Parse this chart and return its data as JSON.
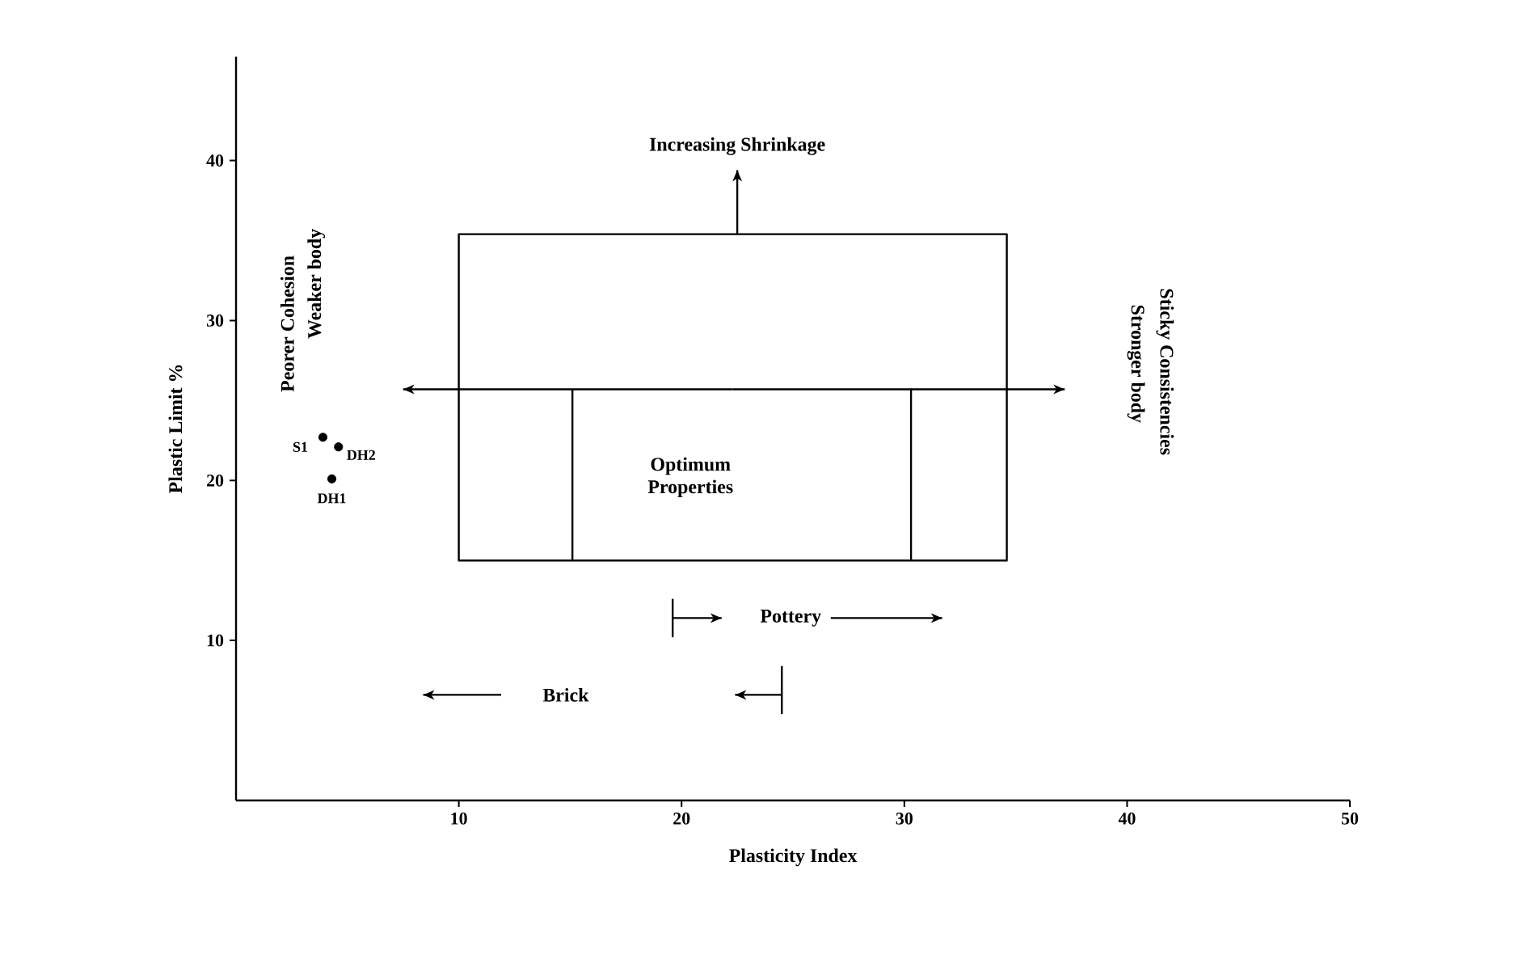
{
  "chart_data": {
    "type": "scatter",
    "xlabel": "Plasticity Index",
    "ylabel": "Plastic Limit %",
    "xlim": [
      0,
      50
    ],
    "ylim": [
      0,
      46.5
    ],
    "xticks": [
      10,
      20,
      30,
      40,
      50
    ],
    "yticks": [
      10,
      20,
      30,
      40
    ],
    "grid": false,
    "series": [
      {
        "type": "scatter",
        "name": "S1",
        "marker": "circle",
        "color": "#000000",
        "x": [
          3.9
        ],
        "values": [
          22.7
        ]
      },
      {
        "type": "scatter",
        "name": "DH1",
        "marker": "circle",
        "color": "#000000",
        "x": [
          4.3
        ],
        "values": [
          20.1
        ]
      },
      {
        "type": "scatter",
        "name": "DH2",
        "marker": "circle",
        "color": "#000000",
        "x": [
          4.6
        ],
        "values": [
          22.1
        ]
      },
      {
        "type": "line",
        "color": "#000000",
        "x": [
          15.1,
          15.1,
          10,
          10,
          34.6,
          34.6,
          30.3,
          30.3,
          30.3,
          15.1
        ],
        "values": [
          25.7,
          15,
          15,
          35.4,
          35.4,
          15,
          15,
          25.7,
          15,
          15
        ]
      },
      {
        "type": "line",
        "color": "#000000",
        "x": [
          22.5,
          22.5
        ],
        "values": [
          35.4,
          39.4
        ]
      },
      {
        "type": "line",
        "color": "#000000",
        "x": [
          22.3,
          37.2
        ],
        "values": [
          25.7,
          25.7
        ]
      },
      {
        "type": "line",
        "color": "#000000",
        "x": [
          22.3,
          7.5
        ],
        "values": [
          25.7,
          25.7
        ]
      },
      {
        "type": "line",
        "color": "#000000",
        "x": [
          19.6,
          19.6,
          19.6
        ],
        "values": [
          12.6,
          11.4,
          10.2
        ]
      },
      {
        "type": "line",
        "color": "#000000",
        "x": [
          19.6,
          21.8
        ],
        "values": [
          11.4,
          11.4
        ]
      },
      {
        "type": "line",
        "color": "#000000",
        "x": [
          26.7,
          31.7
        ],
        "values": [
          11.4,
          11.4
        ]
      },
      {
        "type": "line",
        "color": "#000000",
        "x": [
          11.9,
          8.4
        ],
        "values": [
          6.6,
          6.6
        ]
      },
      {
        "type": "line",
        "color": "#000000",
        "x": [
          24.5,
          24.5,
          24.5
        ],
        "values": [
          8.4,
          6.6,
          5.4
        ]
      },
      {
        "type": "line",
        "color": "#000000",
        "x": [
          24.5,
          22.4
        ],
        "values": [
          6.6,
          6.6
        ]
      }
    ],
    "annotations": [
      "Increasing Shrinkage",
      "Peorer Cohesion",
      "Weaker body",
      "Sticky Consistencies",
      "Stronger body",
      "Optimum Properties",
      "Pottery",
      "Brick"
    ]
  }
}
